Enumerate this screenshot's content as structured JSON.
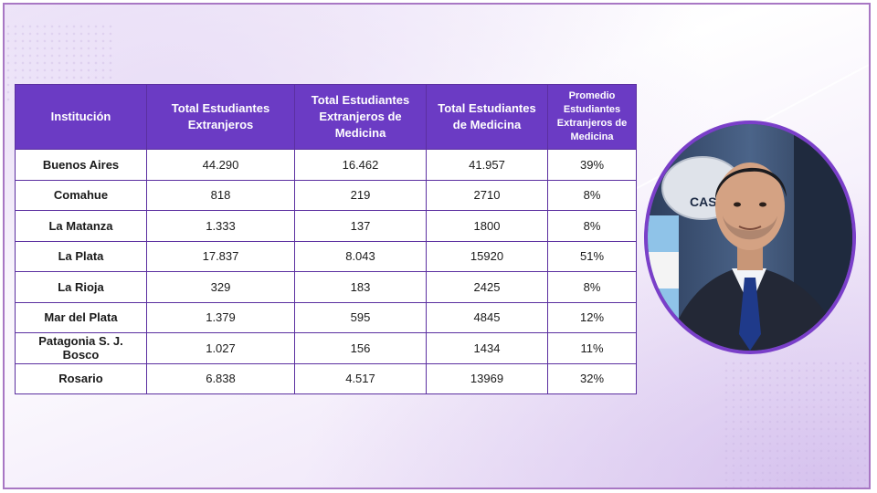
{
  "table": {
    "headers": [
      "Institución",
      "Total Estudiantes Extranjeros",
      "Total Estudiantes Extranjeros de Medicina",
      "Total Estudiantes de Medicina",
      "Promedio Estudiantes Extranjeros de Medicina"
    ],
    "rows": [
      [
        "Buenos Aires",
        "44.290",
        "16.462",
        "41.957",
        "39%"
      ],
      [
        "Comahue",
        "818",
        "219",
        "2710",
        "8%"
      ],
      [
        "La Matanza",
        "1.333",
        "137",
        "1800",
        "8%"
      ],
      [
        "La Plata",
        "17.837",
        "8.043",
        "15920",
        "51%"
      ],
      [
        "La Rioja",
        "329",
        "183",
        "2425",
        "8%"
      ],
      [
        "Mar del Plata",
        "1.379",
        "595",
        "4845",
        "12%"
      ],
      [
        "Patagonia S. J. Bosco",
        "1.027",
        "156",
        "1434",
        "11%"
      ],
      [
        "Rosario",
        "6.838",
        "4.517",
        "13969",
        "32%"
      ]
    ]
  },
  "photo": {
    "sign_text": "CASA",
    "description_icon": "portrait-man-in-suit"
  },
  "colors": {
    "header_bg": "#6b3bc4",
    "border": "#5b2fa0",
    "photo_ring": "#7a3fc9"
  }
}
